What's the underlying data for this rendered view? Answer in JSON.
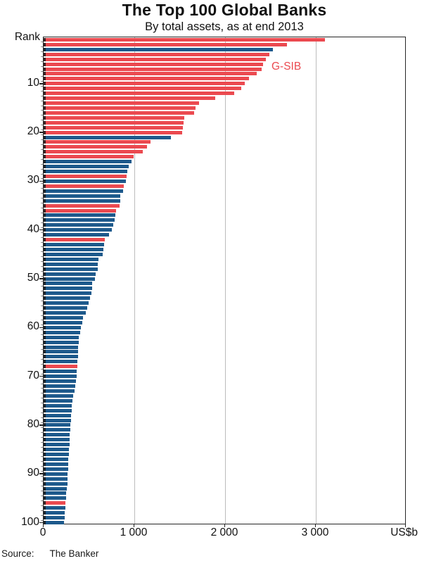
{
  "title": "The Top 100 Global Banks",
  "subtitle": "By total assets, as at end 2013",
  "source_label": "Source:",
  "source_value": "The Banker",
  "chart_data": {
    "type": "bar",
    "orientation": "horizontal",
    "title": "The Top 100 Global Banks",
    "subtitle": "By total assets, as at end 2013",
    "y_axis_label": "Rank",
    "x_unit_label": "US$b",
    "gsib_label": "G-SIB",
    "xlim": [
      0,
      4000
    ],
    "x_ticks": [
      0,
      1000,
      2000,
      3000
    ],
    "x_tick_labels": [
      "0",
      "1 000",
      "2 000",
      "3 000"
    ],
    "y_ticks": [
      10,
      20,
      30,
      40,
      50,
      60,
      70,
      80,
      90,
      100
    ],
    "grid": "vertical-on",
    "colors": {
      "gsib_red": "#eb4a50",
      "other_blue": "#1e5a8c"
    },
    "legend_note": "red bars = G-SIB (global systemically important banks), blue bars = other banks",
    "bars": [
      {
        "r": 1,
        "v": 3100,
        "g": true
      },
      {
        "r": 2,
        "v": 2685,
        "g": true
      },
      {
        "r": 3,
        "v": 2530,
        "g": false
      },
      {
        "r": 4,
        "v": 2485,
        "g": true
      },
      {
        "r": 5,
        "v": 2450,
        "g": true
      },
      {
        "r": 6,
        "v": 2420,
        "g": true
      },
      {
        "r": 7,
        "v": 2400,
        "g": true
      },
      {
        "r": 8,
        "v": 2350,
        "g": true
      },
      {
        "r": 9,
        "v": 2260,
        "g": true
      },
      {
        "r": 10,
        "v": 2220,
        "g": true
      },
      {
        "r": 11,
        "v": 2175,
        "g": true
      },
      {
        "r": 12,
        "v": 2100,
        "g": true
      },
      {
        "r": 13,
        "v": 1895,
        "g": true
      },
      {
        "r": 14,
        "v": 1710,
        "g": true
      },
      {
        "r": 15,
        "v": 1675,
        "g": true
      },
      {
        "r": 16,
        "v": 1660,
        "g": true
      },
      {
        "r": 17,
        "v": 1552,
        "g": true
      },
      {
        "r": 18,
        "v": 1540,
        "g": true
      },
      {
        "r": 19,
        "v": 1533,
        "g": true
      },
      {
        "r": 20,
        "v": 1528,
        "g": true
      },
      {
        "r": 21,
        "v": 1400,
        "g": false
      },
      {
        "r": 22,
        "v": 1175,
        "g": true
      },
      {
        "r": 23,
        "v": 1137,
        "g": true
      },
      {
        "r": 24,
        "v": 1090,
        "g": true
      },
      {
        "r": 25,
        "v": 990,
        "g": true
      },
      {
        "r": 26,
        "v": 972,
        "g": false
      },
      {
        "r": 27,
        "v": 935,
        "g": false
      },
      {
        "r": 28,
        "v": 920,
        "g": false
      },
      {
        "r": 29,
        "v": 915,
        "g": true
      },
      {
        "r": 30,
        "v": 908,
        "g": false
      },
      {
        "r": 31,
        "v": 884,
        "g": true
      },
      {
        "r": 32,
        "v": 875,
        "g": false
      },
      {
        "r": 33,
        "v": 848,
        "g": false
      },
      {
        "r": 34,
        "v": 843,
        "g": false
      },
      {
        "r": 35,
        "v": 836,
        "g": true
      },
      {
        "r": 36,
        "v": 801,
        "g": true
      },
      {
        "r": 37,
        "v": 792,
        "g": false
      },
      {
        "r": 38,
        "v": 786,
        "g": false
      },
      {
        "r": 39,
        "v": 766,
        "g": false
      },
      {
        "r": 40,
        "v": 754,
        "g": false
      },
      {
        "r": 41,
        "v": 724,
        "g": false
      },
      {
        "r": 42,
        "v": 672,
        "g": true
      },
      {
        "r": 43,
        "v": 667,
        "g": false
      },
      {
        "r": 44,
        "v": 661,
        "g": false
      },
      {
        "r": 45,
        "v": 649,
        "g": false
      },
      {
        "r": 46,
        "v": 606,
        "g": false
      },
      {
        "r": 47,
        "v": 599,
        "g": false
      },
      {
        "r": 48,
        "v": 594,
        "g": false
      },
      {
        "r": 49,
        "v": 575,
        "g": false
      },
      {
        "r": 50,
        "v": 566,
        "g": false
      },
      {
        "r": 51,
        "v": 538,
        "g": false
      },
      {
        "r": 52,
        "v": 532,
        "g": false
      },
      {
        "r": 53,
        "v": 527,
        "g": false
      },
      {
        "r": 54,
        "v": 508,
        "g": false
      },
      {
        "r": 55,
        "v": 494,
        "g": false
      },
      {
        "r": 56,
        "v": 483,
        "g": false
      },
      {
        "r": 57,
        "v": 464,
        "g": false
      },
      {
        "r": 58,
        "v": 437,
        "g": false
      },
      {
        "r": 59,
        "v": 424,
        "g": false
      },
      {
        "r": 60,
        "v": 410,
        "g": false
      },
      {
        "r": 61,
        "v": 404,
        "g": false
      },
      {
        "r": 62,
        "v": 391,
        "g": false
      },
      {
        "r": 63,
        "v": 387,
        "g": false
      },
      {
        "r": 64,
        "v": 383,
        "g": false
      },
      {
        "r": 65,
        "v": 379,
        "g": false
      },
      {
        "r": 66,
        "v": 376,
        "g": false
      },
      {
        "r": 67,
        "v": 373,
        "g": false
      },
      {
        "r": 68,
        "v": 371,
        "g": true
      },
      {
        "r": 69,
        "v": 367,
        "g": false
      },
      {
        "r": 70,
        "v": 363,
        "g": false
      },
      {
        "r": 71,
        "v": 357,
        "g": false
      },
      {
        "r": 72,
        "v": 351,
        "g": false
      },
      {
        "r": 73,
        "v": 344,
        "g": false
      },
      {
        "r": 74,
        "v": 324,
        "g": false
      },
      {
        "r": 75,
        "v": 318,
        "g": false
      },
      {
        "r": 76,
        "v": 313,
        "g": false
      },
      {
        "r": 77,
        "v": 309,
        "g": false
      },
      {
        "r": 78,
        "v": 305,
        "g": false
      },
      {
        "r": 79,
        "v": 300,
        "g": false
      },
      {
        "r": 80,
        "v": 296,
        "g": false
      },
      {
        "r": 81,
        "v": 292,
        "g": false
      },
      {
        "r": 82,
        "v": 289,
        "g": false
      },
      {
        "r": 83,
        "v": 286,
        "g": false
      },
      {
        "r": 84,
        "v": 283,
        "g": false
      },
      {
        "r": 85,
        "v": 280,
        "g": false
      },
      {
        "r": 86,
        "v": 277,
        "g": false
      },
      {
        "r": 87,
        "v": 274,
        "g": false
      },
      {
        "r": 88,
        "v": 271,
        "g": false
      },
      {
        "r": 89,
        "v": 268,
        "g": false
      },
      {
        "r": 90,
        "v": 265,
        "g": false
      },
      {
        "r": 91,
        "v": 263,
        "g": false
      },
      {
        "r": 92,
        "v": 261,
        "g": false
      },
      {
        "r": 93,
        "v": 258,
        "g": false
      },
      {
        "r": 94,
        "v": 250,
        "g": false
      },
      {
        "r": 95,
        "v": 246,
        "g": false
      },
      {
        "r": 96,
        "v": 243,
        "g": true
      },
      {
        "r": 97,
        "v": 239,
        "g": false
      },
      {
        "r": 98,
        "v": 235,
        "g": false
      },
      {
        "r": 99,
        "v": 232,
        "g": false
      },
      {
        "r": 100,
        "v": 228,
        "g": false
      }
    ]
  }
}
